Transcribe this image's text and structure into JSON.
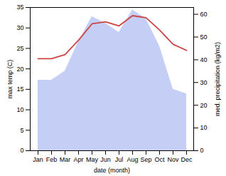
{
  "chart_data": {
    "type": "line",
    "xlabel": "date (month)",
    "ylabel": "max temp (C)",
    "y2label": "med. precipitation (kg/m2)",
    "categories": [
      "Jan",
      "Feb",
      "Mar",
      "Apr",
      "May",
      "Jun",
      "Jul",
      "Aug",
      "Sep",
      "Oct",
      "Nov",
      "Dec"
    ],
    "series": [
      {
        "type": "area",
        "axis": "y2",
        "color": "#c5cff5",
        "values": [
          31,
          31,
          35,
          48,
          59,
          56,
          52,
          62,
          58,
          46,
          27,
          25
        ]
      },
      {
        "type": "line",
        "color": "#cc4444",
        "values": [
          22.5,
          22.5,
          23.5,
          27.0,
          31.0,
          31.5,
          30.5,
          33.0,
          32.5,
          29.5,
          26.0,
          24.5
        ]
      }
    ],
    "ylim": [
      0,
      35
    ],
    "yticks": [
      0,
      5,
      10,
      15,
      20,
      25,
      30,
      35
    ],
    "y2lim": [
      0,
      63
    ],
    "y2ticks": [
      0,
      10,
      20,
      30,
      40,
      50,
      60
    ]
  }
}
